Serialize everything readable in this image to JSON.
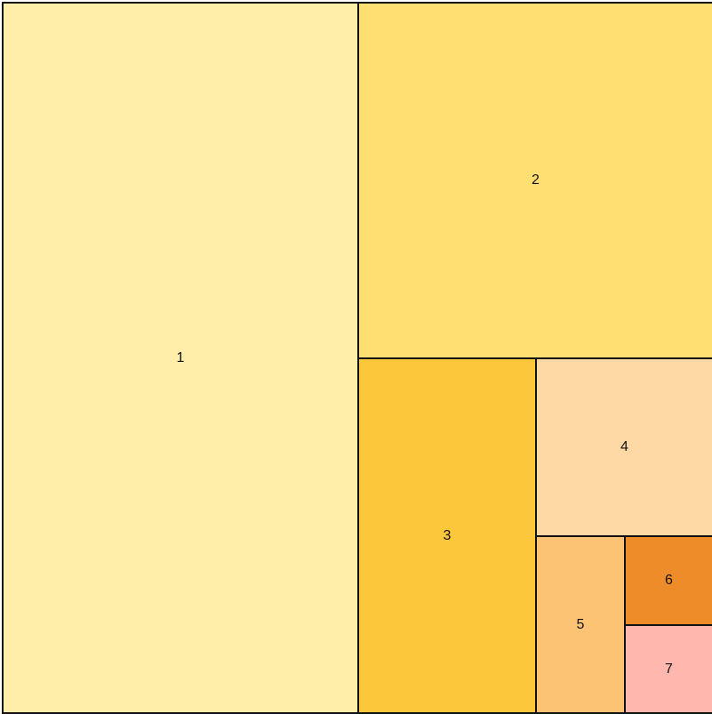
{
  "treemap": {
    "tiles": [
      {
        "label": "1",
        "color": "#FFEDAA"
      },
      {
        "label": "2",
        "color": "#FFDF71"
      },
      {
        "label": "3",
        "color": "#FCC73A"
      },
      {
        "label": "4",
        "color": "#FED9A6"
      },
      {
        "label": "5",
        "color": "#FDC374"
      },
      {
        "label": "6",
        "color": "#EE8C2A"
      },
      {
        "label": "7",
        "color": "#FFB7AE"
      }
    ]
  }
}
